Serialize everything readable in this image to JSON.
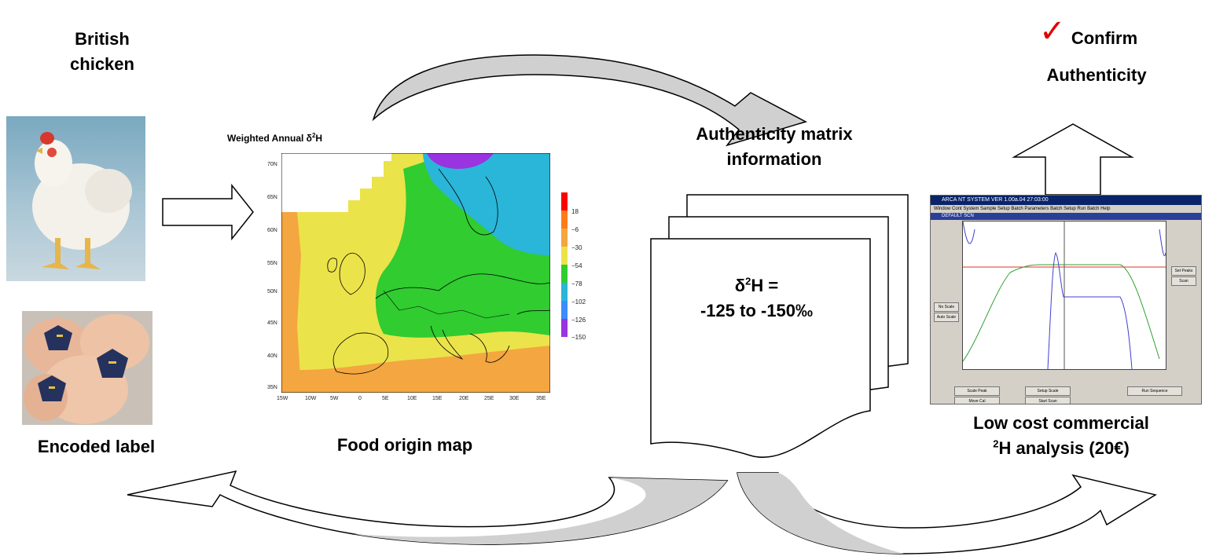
{
  "labels": {
    "british_chicken": "British\nchicken",
    "encoded_label": "Encoded label",
    "food_origin_map": "Food origin map",
    "authenticity_matrix": "Authenticity matrix\ninformation",
    "confirm": "Confirm",
    "authenticity": "Authenticity",
    "low_cost_line1": "Low cost commercial",
    "low_cost_line2_sup": "2",
    "low_cost_line2": "H analysis (20€)"
  },
  "document": {
    "line1_prefix": "δ",
    "line1_sup": "2",
    "line1_suffix": "H =",
    "line2": "-125 to  -150‰"
  },
  "map": {
    "title_prefix": "Weighted Annual δ",
    "title_sup": "2",
    "title_suffix": "H",
    "lat_ticks": [
      "70N",
      "65N",
      "60N",
      "55N",
      "50N",
      "45N",
      "40N",
      "35N"
    ],
    "lon_ticks": [
      "15W",
      "10W",
      "5W",
      "0",
      "5E",
      "10E",
      "15E",
      "20E",
      "25E",
      "30E",
      "35E"
    ],
    "colorbar_ticks": [
      "18",
      "−6",
      "−30",
      "−54",
      "−78",
      "−102",
      "−126",
      "−150"
    ],
    "colorbar_colors": [
      "#ff0000",
      "#ff7a1a",
      "#f4a640",
      "#ebe34a",
      "#30cc30",
      "#2ab6d8",
      "#3a8cff",
      "#9a33e0"
    ]
  },
  "screen": {
    "title": "ARCA NT SYSTEM VER 1.00a.04   27:03:00",
    "menu": "Window  Cont System  Sample Setup  Batch Parameters  Batch Setup  Run Batch  Help",
    "subtitle": "DEFAULT SCN",
    "buttons": [
      "Scale Peak",
      "Setup Scale",
      "Run Sequence",
      "Move Cal",
      "Start Scan",
      "Set Peaks",
      "Scan",
      "No Scale",
      "Auto Scale"
    ]
  },
  "colors": {
    "arrow_fill": "#d0d0d0",
    "check_color": "#e00000"
  }
}
